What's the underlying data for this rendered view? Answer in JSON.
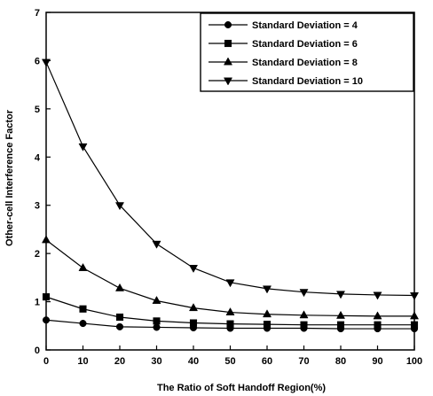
{
  "chart_data": {
    "type": "line",
    "xlabel": "The Ratio of Soft Handoff Region(%)",
    "ylabel": "Other-cell Interference Factor",
    "xlim": [
      0,
      100
    ],
    "ylim": [
      0,
      7
    ],
    "x": [
      0,
      10,
      20,
      30,
      40,
      50,
      60,
      70,
      80,
      90,
      100
    ],
    "x_ticks": [
      "0",
      "10",
      "20",
      "30",
      "40",
      "50",
      "60",
      "70",
      "80",
      "90",
      "100"
    ],
    "y_ticks": [
      "0",
      "1",
      "2",
      "3",
      "4",
      "5",
      "6",
      "7"
    ],
    "legend_position": "top-right",
    "grid": false,
    "series": [
      {
        "name": "Standard Deviation = 4",
        "marker": "circle",
        "values": [
          0.62,
          0.55,
          0.48,
          0.47,
          0.46,
          0.45,
          0.45,
          0.45,
          0.44,
          0.44,
          0.44
        ]
      },
      {
        "name": "Standard Deviation = 6",
        "marker": "square",
        "values": [
          1.1,
          0.85,
          0.68,
          0.6,
          0.56,
          0.54,
          0.53,
          0.52,
          0.52,
          0.52,
          0.52
        ]
      },
      {
        "name": "Standard Deviation = 8",
        "marker": "triangle-up",
        "values": [
          2.28,
          1.7,
          1.28,
          1.02,
          0.87,
          0.78,
          0.74,
          0.72,
          0.71,
          0.7,
          0.7
        ]
      },
      {
        "name": "Standard Deviation = 10",
        "marker": "triangle-down",
        "values": [
          5.97,
          4.22,
          3.0,
          2.2,
          1.7,
          1.4,
          1.27,
          1.2,
          1.16,
          1.14,
          1.13
        ]
      }
    ]
  }
}
